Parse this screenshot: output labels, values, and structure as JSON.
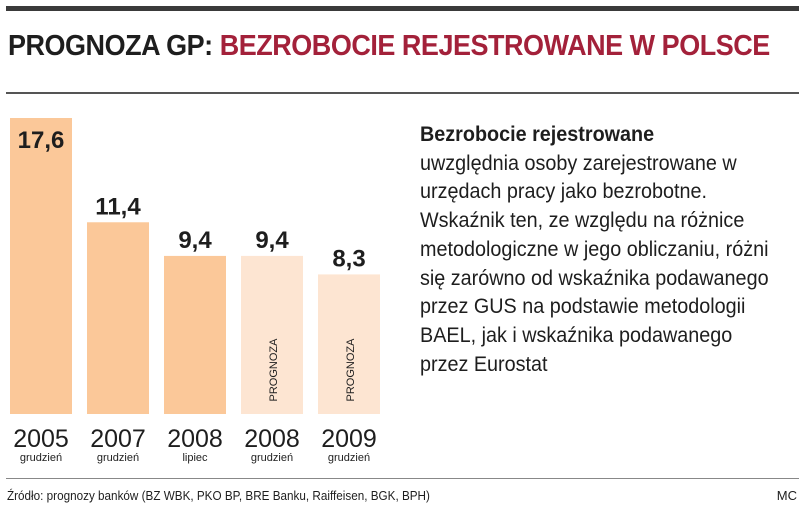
{
  "header": {
    "title_prefix": "PROGNOZA GP:",
    "title_main": "BEZROBOCIE REJESTROWANE W POLSCE"
  },
  "description": {
    "heading": "Bezrobocie rejestrowane",
    "body": "uwzględnia osoby zarejestrowane w urzędach pracy jako bezrobotne. Wskaźnik ten, ze względu na różnice metodologiczne w jego obliczaniu, różni się zarówno od wskaźnika podawanego przez GUS na podstawie metodologii BAEL, jak i wskaźnika podawanego przez Eurostat"
  },
  "footer": {
    "source": "Źródło: prognozy banków (BZ WBK, PKO BP, BRE Banku, Raiffeisen, BGK, BPH)",
    "author": "MC"
  },
  "colors": {
    "actual_bar": "#fbc899",
    "forecast_bar": "#fde5d2",
    "title_accent": "#a3213a",
    "text": "#1e1e1e"
  },
  "chart_data": {
    "type": "bar",
    "categories": [
      "2005",
      "2007",
      "2008",
      "2008",
      "2009"
    ],
    "sublabels": [
      "grudzień",
      "grudzień",
      "lipiec",
      "grudzień",
      "grudzień"
    ],
    "values": [
      17.6,
      11.4,
      9.4,
      9.4,
      8.3
    ],
    "value_labels": [
      "17,6",
      "11,4",
      "9,4",
      "9,4",
      "8,3"
    ],
    "forecast": [
      false,
      false,
      false,
      true,
      true
    ],
    "forecast_label": "PROGNOZA",
    "ylim": [
      0,
      17.6
    ],
    "grid": false,
    "legend": "none"
  }
}
